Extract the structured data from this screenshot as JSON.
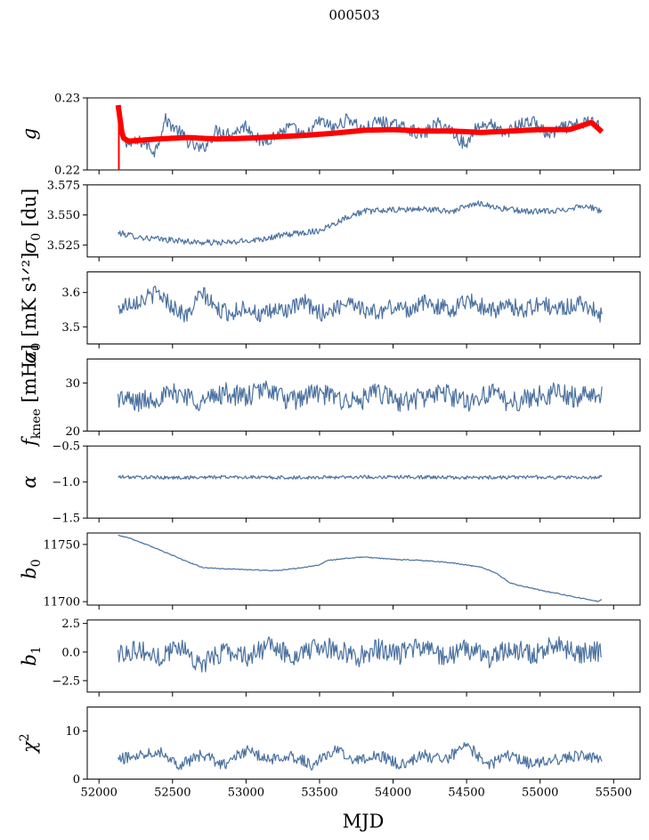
{
  "figure": {
    "suptitle": "000503",
    "xlabel": "MJD",
    "x_ticks": [
      52000,
      52500,
      53000,
      53500,
      54000,
      54500,
      55000,
      55500
    ],
    "x_range": [
      51920,
      55680
    ],
    "data_x_range": [
      52130,
      55420
    ]
  },
  "colors": {
    "series": "#4c72a0",
    "fit": "#ff0000",
    "axis": "#000000"
  },
  "chart_data": [
    {
      "id": "g",
      "type": "line",
      "ylabel_main": "g",
      "ylabel_sub": "",
      "ylabel_tail": "",
      "ylim": [
        0.22,
        0.23
      ],
      "yticks": [
        0.22,
        0.23
      ],
      "ytick_labels": [
        "0.22",
        "0.23"
      ],
      "series": [
        {
          "name": "g",
          "color": "#4c72a0",
          "x": [
            52130,
            52200,
            52300,
            52380,
            52450,
            52550,
            52620,
            52700,
            52800,
            52900,
            53000,
            53100,
            53200,
            53300,
            53400,
            53500,
            53600,
            53700,
            53800,
            53900,
            54000,
            54100,
            54200,
            54300,
            54400,
            54500,
            54550,
            54650,
            54750,
            54850,
            54950,
            55050,
            55150,
            55250,
            55350,
            55420
          ],
          "y": [
            0.2262,
            0.2235,
            0.224,
            0.2225,
            0.227,
            0.2252,
            0.2236,
            0.2228,
            0.2255,
            0.225,
            0.2262,
            0.2238,
            0.2248,
            0.226,
            0.2245,
            0.2268,
            0.2258,
            0.2272,
            0.2255,
            0.2268,
            0.2262,
            0.2258,
            0.2248,
            0.2265,
            0.2255,
            0.2232,
            0.2258,
            0.2265,
            0.225,
            0.2262,
            0.2268,
            0.2248,
            0.2258,
            0.2262,
            0.2268,
            0.226
          ]
        },
        {
          "name": "g fit",
          "color": "#ff0000",
          "x": [
            52130,
            52160,
            52200,
            52400,
            52600,
            52800,
            53000,
            53200,
            53400,
            53600,
            53800,
            54000,
            54200,
            54400,
            54600,
            54800,
            55000,
            55200,
            55350,
            55420
          ],
          "y": [
            0.229,
            0.2245,
            0.224,
            0.2243,
            0.2245,
            0.2243,
            0.2244,
            0.2246,
            0.2248,
            0.2251,
            0.2255,
            0.2256,
            0.2254,
            0.2254,
            0.2252,
            0.2254,
            0.2256,
            0.2256,
            0.2266,
            0.2253
          ]
        }
      ]
    },
    {
      "id": "sigma0",
      "type": "line",
      "ylabel_main": "σ",
      "ylabel_sub": "0",
      "ylabel_tail": " [du]",
      "ylim": [
        3.515,
        3.575
      ],
      "yticks": [
        3.525,
        3.55,
        3.575
      ],
      "ytick_labels": [
        "3.525",
        "3.550",
        "3.575"
      ],
      "series": [
        {
          "name": "sigma0",
          "color": "#4c72a0",
          "x": [
            52130,
            52300,
            52500,
            52700,
            52900,
            53100,
            53300,
            53500,
            53600,
            53700,
            53800,
            54000,
            54200,
            54400,
            54500,
            54600,
            54700,
            54900,
            55100,
            55300,
            55420
          ],
          "y": [
            3.535,
            3.531,
            3.529,
            3.527,
            3.527,
            3.53,
            3.534,
            3.537,
            3.543,
            3.549,
            3.553,
            3.554,
            3.555,
            3.553,
            3.557,
            3.56,
            3.556,
            3.553,
            3.553,
            3.558,
            3.553
          ]
        }
      ]
    },
    {
      "id": "fknee0",
      "type": "line",
      "ylabel_main": "σ",
      "ylabel_sub": "0",
      "ylabel_tail": " [mK s¹ᐟ²]",
      "ylim": [
        3.45,
        3.66
      ],
      "yticks": [
        3.5,
        3.6
      ],
      "ytick_labels": [
        "3.5",
        "3.6"
      ],
      "series": [
        {
          "name": "white noise",
          "color": "#4c72a0",
          "x": [
            52130,
            52200,
            52300,
            52400,
            52500,
            52600,
            52700,
            52800,
            52900,
            53000,
            53100,
            53200,
            53300,
            53400,
            53500,
            53600,
            53700,
            53800,
            53900,
            54000,
            54100,
            54200,
            54300,
            54400,
            54500,
            54600,
            54700,
            54800,
            54900,
            55000,
            55100,
            55200,
            55300,
            55420
          ],
          "y": [
            3.55,
            3.57,
            3.58,
            3.6,
            3.56,
            3.53,
            3.6,
            3.55,
            3.54,
            3.56,
            3.53,
            3.55,
            3.55,
            3.57,
            3.54,
            3.55,
            3.58,
            3.55,
            3.54,
            3.56,
            3.55,
            3.57,
            3.56,
            3.55,
            3.58,
            3.56,
            3.55,
            3.56,
            3.55,
            3.57,
            3.55,
            3.56,
            3.57,
            3.53
          ]
        }
      ]
    },
    {
      "id": "fknee",
      "type": "line",
      "ylabel_main": "f",
      "ylabel_sub": "knee",
      "ylabel_tail": " [mHz]",
      "ylim": [
        20,
        35
      ],
      "yticks": [
        20,
        30
      ],
      "ytick_labels": [
        "20",
        "30"
      ],
      "series": [
        {
          "name": "fknee",
          "color": "#4c72a0",
          "x": [
            52130,
            52250,
            52400,
            52550,
            52700,
            52850,
            53000,
            53150,
            53300,
            53450,
            53600,
            53750,
            53900,
            54050,
            54200,
            54350,
            54500,
            54650,
            54800,
            54950,
            55100,
            55250,
            55420
          ],
          "y": [
            27,
            26,
            27,
            28,
            26,
            28,
            27,
            29,
            26,
            28,
            27,
            26,
            28,
            26,
            27,
            28,
            26,
            28,
            26,
            27,
            28,
            27,
            28
          ]
        }
      ]
    },
    {
      "id": "alpha",
      "type": "line",
      "ylabel_main": "α",
      "ylabel_sub": "",
      "ylabel_tail": "",
      "ylim": [
        -1.5,
        -0.5
      ],
      "yticks": [
        -1.5,
        -1.0,
        -0.5
      ],
      "ytick_labels": [
        "−1.5",
        "−1.0",
        "−0.5"
      ],
      "series": [
        {
          "name": "alpha",
          "color": "#4c72a0",
          "x": [
            52130,
            52500,
            52900,
            53300,
            53700,
            54100,
            54500,
            54900,
            55300,
            55420
          ],
          "y": [
            -0.93,
            -0.94,
            -0.93,
            -0.94,
            -0.93,
            -0.93,
            -0.94,
            -0.93,
            -0.94,
            -0.93
          ]
        }
      ]
    },
    {
      "id": "b0",
      "type": "line",
      "ylabel_main": "b",
      "ylabel_sub": "0",
      "ylabel_tail": "",
      "ylim": [
        11697,
        11760
      ],
      "yticks": [
        11700,
        11750
      ],
      "ytick_labels": [
        "11700",
        "11750"
      ],
      "series": [
        {
          "name": "b0",
          "color": "#4c72a0",
          "x": [
            52130,
            52200,
            52400,
            52600,
            52700,
            52800,
            53000,
            53200,
            53400,
            53500,
            53550,
            53700,
            53800,
            54000,
            54200,
            54400,
            54600,
            54700,
            54800,
            55000,
            55200,
            55400,
            55420
          ],
          "y": [
            11758,
            11756,
            11746,
            11735,
            11730,
            11729,
            11728,
            11727,
            11730,
            11732,
            11736,
            11738,
            11739,
            11737,
            11736,
            11734,
            11730,
            11725,
            11716,
            11710,
            11705,
            11700,
            11702
          ]
        }
      ]
    },
    {
      "id": "b1",
      "type": "line",
      "ylabel_main": "b",
      "ylabel_sub": "1",
      "ylabel_tail": "",
      "ylim": [
        -3.5,
        2.8
      ],
      "yticks": [
        -2.5,
        0.0,
        2.5
      ],
      "ytick_labels": [
        "−2.5",
        "0.0",
        "2.5"
      ],
      "series": [
        {
          "name": "b1",
          "color": "#4c72a0",
          "x": [
            52130,
            52250,
            52400,
            52550,
            52700,
            52850,
            53000,
            53150,
            53300,
            53450,
            53600,
            53750,
            53900,
            54050,
            54200,
            54350,
            54500,
            54650,
            54800,
            54950,
            55100,
            55250,
            55420
          ],
          "y": [
            -0.2,
            0.3,
            -0.5,
            0.6,
            -1.2,
            0.2,
            -0.4,
            0.5,
            -0.3,
            0.2,
            0.4,
            -0.5,
            0.3,
            -0.2,
            0.5,
            -0.4,
            0.3,
            -0.6,
            0.4,
            -0.3,
            0.6,
            -0.2,
            0.1
          ]
        }
      ]
    },
    {
      "id": "chi2",
      "type": "line",
      "ylabel_main": "χ",
      "ylabel_sub": "",
      "ylabel_tail": "",
      "ylabel_sup": "2",
      "ylim": [
        0,
        15
      ],
      "yticks": [
        0,
        10
      ],
      "ytick_labels": [
        "0",
        "10"
      ],
      "series": [
        {
          "name": "chi2",
          "color": "#4c72a0",
          "x": [
            52130,
            52250,
            52400,
            52550,
            52700,
            52850,
            53000,
            53150,
            53300,
            53450,
            53600,
            53750,
            53900,
            54050,
            54200,
            54350,
            54500,
            54650,
            54800,
            54950,
            55100,
            55250,
            55420
          ],
          "y": [
            4,
            5,
            6,
            3,
            5,
            3,
            6,
            4,
            5,
            3,
            6,
            4,
            5,
            3,
            5,
            4,
            7,
            3,
            5,
            3,
            4,
            5,
            4
          ]
        }
      ]
    }
  ]
}
